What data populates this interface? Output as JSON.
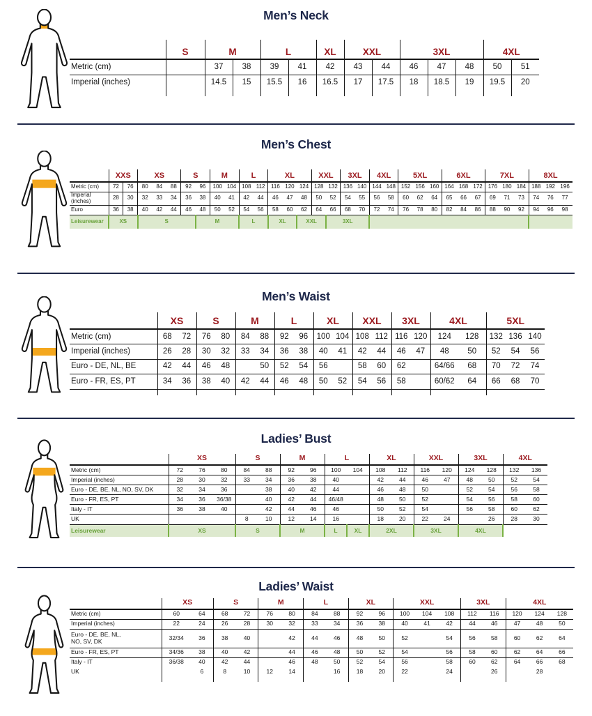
{
  "colors": {
    "title_navy": "#1c2649",
    "size_maroon": "#9c1b20",
    "text_black": "#161616",
    "table_line": "#161616",
    "leisure_green_text": "#69a23b",
    "leisure_green_bg": "#dde9ce",
    "leisure_green_divider": "#7ab244",
    "figure_band_orange": "#f4a71d",
    "separator_navy": "#20294a"
  },
  "sections": [
    {
      "title": "Men’s Neck",
      "figure": {
        "type": "male",
        "band": "neck"
      },
      "table": {
        "groups": [
          {
            "label": "S",
            "span": 1
          },
          {
            "label": "M",
            "span": 2
          },
          {
            "label": "L",
            "span": 2
          },
          {
            "label": "XL",
            "span": 1
          },
          {
            "label": "XXL",
            "span": 2
          },
          {
            "label": "3XL",
            "span": 3
          },
          {
            "label": "4XL",
            "span": 2
          }
        ],
        "rows": [
          {
            "label": "Metric  (cm)",
            "cells": [
              "",
              "37",
              "38",
              "39",
              "41",
              "42",
              "43",
              "44",
              "46",
              "47",
              "48",
              "50",
              "51"
            ]
          },
          {
            "label": "Imperial (inches)",
            "cells": [
              "",
              "14.5",
              "15",
              "15.5",
              "16",
              "16.5",
              "17",
              "17.5",
              "18",
              "18.5",
              "19",
              "19.5",
              "20"
            ]
          }
        ]
      }
    },
    {
      "title": "Men’s Chest",
      "figure": {
        "type": "male",
        "band": "chest"
      },
      "table": {
        "groups": [
          {
            "label": "XXS",
            "span": 2
          },
          {
            "label": "XS",
            "span": 3
          },
          {
            "label": "S",
            "span": 2
          },
          {
            "label": "M",
            "span": 2
          },
          {
            "label": "L",
            "span": 2
          },
          {
            "label": "XL",
            "span": 3
          },
          {
            "label": "XXL",
            "span": 2
          },
          {
            "label": "3XL",
            "span": 2
          },
          {
            "label": "4XL",
            "span": 2
          },
          {
            "label": "5XL",
            "span": 3
          },
          {
            "label": "6XL",
            "span": 3
          },
          {
            "label": "7XL",
            "span": 3
          },
          {
            "label": "8XL",
            "span": 3
          }
        ],
        "rows": [
          {
            "label": "Metric  (cm)",
            "cells": [
              "72",
              "76",
              "80",
              "84",
              "88",
              "92",
              "96",
              "100",
              "104",
              "108",
              "112",
              "116",
              "120",
              "124",
              "128",
              "132",
              "136",
              "140",
              "144",
              "148",
              "152",
              "156",
              "160",
              "164",
              "168",
              "172",
              "176",
              "180",
              "184",
              "188",
              "192",
              "196"
            ]
          },
          {
            "label": "Imperial (inches)",
            "cells": [
              "28",
              "30",
              "32",
              "33",
              "34",
              "36",
              "38",
              "40",
              "41",
              "42",
              "44",
              "46",
              "47",
              "48",
              "50",
              "52",
              "54",
              "55",
              "56",
              "58",
              "60",
              "62",
              "64",
              "65",
              "66",
              "67",
              "69",
              "71",
              "73",
              "74",
              "76",
              "77"
            ]
          },
          {
            "label": "Euro",
            "cells": [
              "36",
              "38",
              "40",
              "42",
              "44",
              "46",
              "48",
              "50",
              "52",
              "54",
              "56",
              "58",
              "60",
              "62",
              "64",
              "66",
              "68",
              "70",
              "72",
              "74",
              "76",
              "78",
              "80",
              "82",
              "84",
              "86",
              "88",
              "90",
              "92",
              "94",
              "96",
              "98"
            ]
          }
        ],
        "leisure": {
          "label": "Leisurewear",
          "cells": [
            {
              "t": "XS",
              "span": 2
            },
            {
              "t": "S",
              "span": 4
            },
            {
              "t": "M",
              "span": 3
            },
            {
              "t": "L",
              "span": 2
            },
            {
              "t": "XL",
              "span": 2
            },
            {
              "t": "XXL",
              "span": 2
            },
            {
              "t": "3XL",
              "span": 3
            },
            {
              "t": "",
              "span": 11
            },
            {
              "t": "",
              "span": 3
            }
          ]
        }
      }
    },
    {
      "title": "Men’s Waist",
      "figure": {
        "type": "male",
        "band": "mwaist"
      },
      "table": {
        "groups": [
          {
            "label": "XS",
            "span": 2
          },
          {
            "label": "S",
            "span": 2
          },
          {
            "label": "M",
            "span": 2
          },
          {
            "label": "L",
            "span": 2
          },
          {
            "label": "XL",
            "span": 2
          },
          {
            "label": "XXL",
            "span": 2
          },
          {
            "label": "3XL",
            "span": 2
          },
          {
            "label": "4XL",
            "span": 2
          },
          {
            "label": "5XL",
            "span": 3
          }
        ],
        "rows": [
          {
            "label": "Metric  (cm)",
            "cells": [
              "68",
              "72",
              "76",
              "80",
              "84",
              "88",
              "92",
              "96",
              "100",
              "104",
              "108",
              "112",
              "116",
              "120",
              "124",
              "128",
              "132",
              "136",
              "140"
            ]
          },
          {
            "label": "Imperial (inches)",
            "cells": [
              "26",
              "28",
              "30",
              "32",
              "33",
              "34",
              "36",
              "38",
              "40",
              "41",
              "42",
              "44",
              "46",
              "47",
              "48",
              "50",
              "52",
              "54",
              "56"
            ]
          },
          {
            "label": "Euro - DE, NL, BE",
            "cells": [
              "42",
              "44",
              "46",
              "48",
              "",
              "50",
              "52",
              "54",
              "56",
              "",
              "58",
              "60",
              "62",
              "",
              "64/66",
              "68",
              "70",
              "72",
              "74"
            ]
          },
          {
            "label": "Euro - FR, ES, PT",
            "cells": [
              "34",
              "36",
              "38",
              "40",
              "42",
              "44",
              "46",
              "48",
              "50",
              "52",
              "54",
              "56",
              "58",
              "",
              "60/62",
              "64",
              "66",
              "68",
              "70"
            ]
          }
        ],
        "bottomline": true
      }
    },
    {
      "title": "Ladies’ Bust",
      "figure": {
        "type": "female",
        "band": "bust"
      },
      "table": {
        "groups": [
          {
            "label": "XS",
            "span": 3
          },
          {
            "label": "S",
            "span": 2
          },
          {
            "label": "M",
            "span": 2
          },
          {
            "label": "L",
            "span": 2
          },
          {
            "label": "XL",
            "span": 2
          },
          {
            "label": "XXL",
            "span": 2
          },
          {
            "label": "3XL",
            "span": 2
          },
          {
            "label": "4XL",
            "span": 2
          }
        ],
        "rows": [
          {
            "label": "Metric  (cm)",
            "cells": [
              "72",
              "76",
              "80",
              "84",
              "88",
              "92",
              "96",
              "100",
              "104",
              "108",
              "112",
              "116",
              "120",
              "124",
              "128",
              "132",
              "136"
            ]
          },
          {
            "label": "Imperial (inches)",
            "cells": [
              "28",
              "30",
              "32",
              "33",
              "34",
              "36",
              "38",
              "40",
              "",
              "42",
              "44",
              "46",
              "47",
              "48",
              "50",
              "52",
              "54"
            ]
          },
          {
            "label": "Euro -  DE, BE, NL, NO, SV, DK",
            "cells": [
              "32",
              "34",
              "36",
              "",
              "38",
              "40",
              "42",
              "44",
              "",
              "46",
              "48",
              "50",
              "",
              "52",
              "54",
              "56",
              "58"
            ]
          },
          {
            "label": "Euro - FR, ES, PT",
            "cells": [
              "34",
              "36",
              "36/38",
              "",
              "40",
              "42",
              "44",
              "46/48",
              "",
              "48",
              "50",
              "52",
              "",
              "54",
              "56",
              "58",
              "60"
            ]
          },
          {
            "label": "Italy - IT",
            "cells": [
              "36",
              "38",
              "40",
              "",
              "42",
              "44",
              "46",
              "46",
              "",
              "50",
              "52",
              "54",
              "",
              "56",
              "58",
              "60",
              "62"
            ]
          },
          {
            "label": "UK",
            "cells": [
              "",
              "",
              "",
              "8",
              "10",
              "12",
              "14",
              "16",
              "",
              "18",
              "20",
              "22",
              "24",
              "",
              "26",
              "28",
              "30"
            ]
          }
        ],
        "leisure": {
          "label": "Leisurewear",
          "cells": [
            {
              "t": "XS",
              "span": 3
            },
            {
              "t": "S",
              "span": 2
            },
            {
              "t": "M",
              "span": 2
            },
            {
              "t": "L",
              "span": 1
            },
            {
              "t": "XL",
              "span": 1
            },
            {
              "t": "2XL",
              "span": 2
            },
            {
              "t": "3XL",
              "span": 2
            },
            {
              "t": "4XL",
              "span": 2
            },
            {
              "t": "",
              "span": 2,
              "plain": true
            }
          ]
        }
      }
    },
    {
      "title": "Ladies’ Waist",
      "figure": {
        "type": "female",
        "band": "fwaist"
      },
      "table": {
        "groups": [
          {
            "label": "XS",
            "span": 2
          },
          {
            "label": "S",
            "span": 2
          },
          {
            "label": "M",
            "span": 2
          },
          {
            "label": "L",
            "span": 2
          },
          {
            "label": "XL",
            "span": 2
          },
          {
            "label": "XXL",
            "span": 3
          },
          {
            "label": "3XL",
            "span": 2
          },
          {
            "label": "4XL",
            "span": 3
          }
        ],
        "rows": [
          {
            "label": "Metric  (cm)",
            "cells": [
              "60",
              "64",
              "68",
              "72",
              "76",
              "80",
              "84",
              "88",
              "92",
              "96",
              "100",
              "104",
              "108",
              "112",
              "116",
              "120",
              "124",
              "128"
            ]
          },
          {
            "label": "Imperial (inches)",
            "cells": [
              "22",
              "24",
              "26",
              "28",
              "30",
              "32",
              "33",
              "34",
              "36",
              "38",
              "40",
              "41",
              "42",
              "44",
              "46",
              "47",
              "48",
              "50"
            ]
          },
          {
            "label": "Euro - DE, BE, NL,\nNO, SV, DK",
            "cells": [
              "32/34",
              "36",
              "38",
              "40",
              "",
              "42",
              "44",
              "46",
              "48",
              "50",
              "52",
              "",
              "54",
              "56",
              "58",
              "60",
              "62",
              "64"
            ]
          },
          {
            "label": "Euro - FR, ES, PT",
            "cells": [
              "34/36",
              "38",
              "40",
              "42",
              "",
              "44",
              "46",
              "48",
              "50",
              "52",
              "54",
              "",
              "56",
              "58",
              "60",
              "62",
              "64",
              "66"
            ]
          },
          {
            "label": "Italy - IT",
            "cells": [
              "36/38",
              "40",
              "42",
              "44",
              "",
              "46",
              "48",
              "50",
              "52",
              "54",
              "56",
              "",
              "58",
              "60",
              "62",
              "64",
              "66",
              "68"
            ],
            "noline": true
          },
          {
            "label": "UK",
            "cells": [
              "",
              "6",
              "8",
              "10",
              "12",
              "14",
              "",
              "16",
              "18",
              "20",
              "22",
              "",
              "24",
              "",
              "26",
              "",
              "28",
              ""
            ]
          }
        ]
      }
    }
  ]
}
